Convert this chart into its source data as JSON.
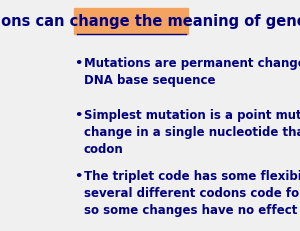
{
  "title": "Mutations can change the meaning of genes",
  "title_color": "#000080",
  "title_bg_color": "#F4A460",
  "title_fontsize": 10.5,
  "bg_color": "#F0F0F0",
  "bullet_color": "#000080",
  "bullet_fontsize": 8.5,
  "bullets": [
    "Mutations are permanent changes in the\nDNA base sequence",
    "Simplest mutation is a point mutation or a\nchange in a single nucleotide that affects one\ncodon",
    "The triplet code has some flexibility because\nseveral different codons code for the same aa,\nso some changes have no effect at all"
  ]
}
